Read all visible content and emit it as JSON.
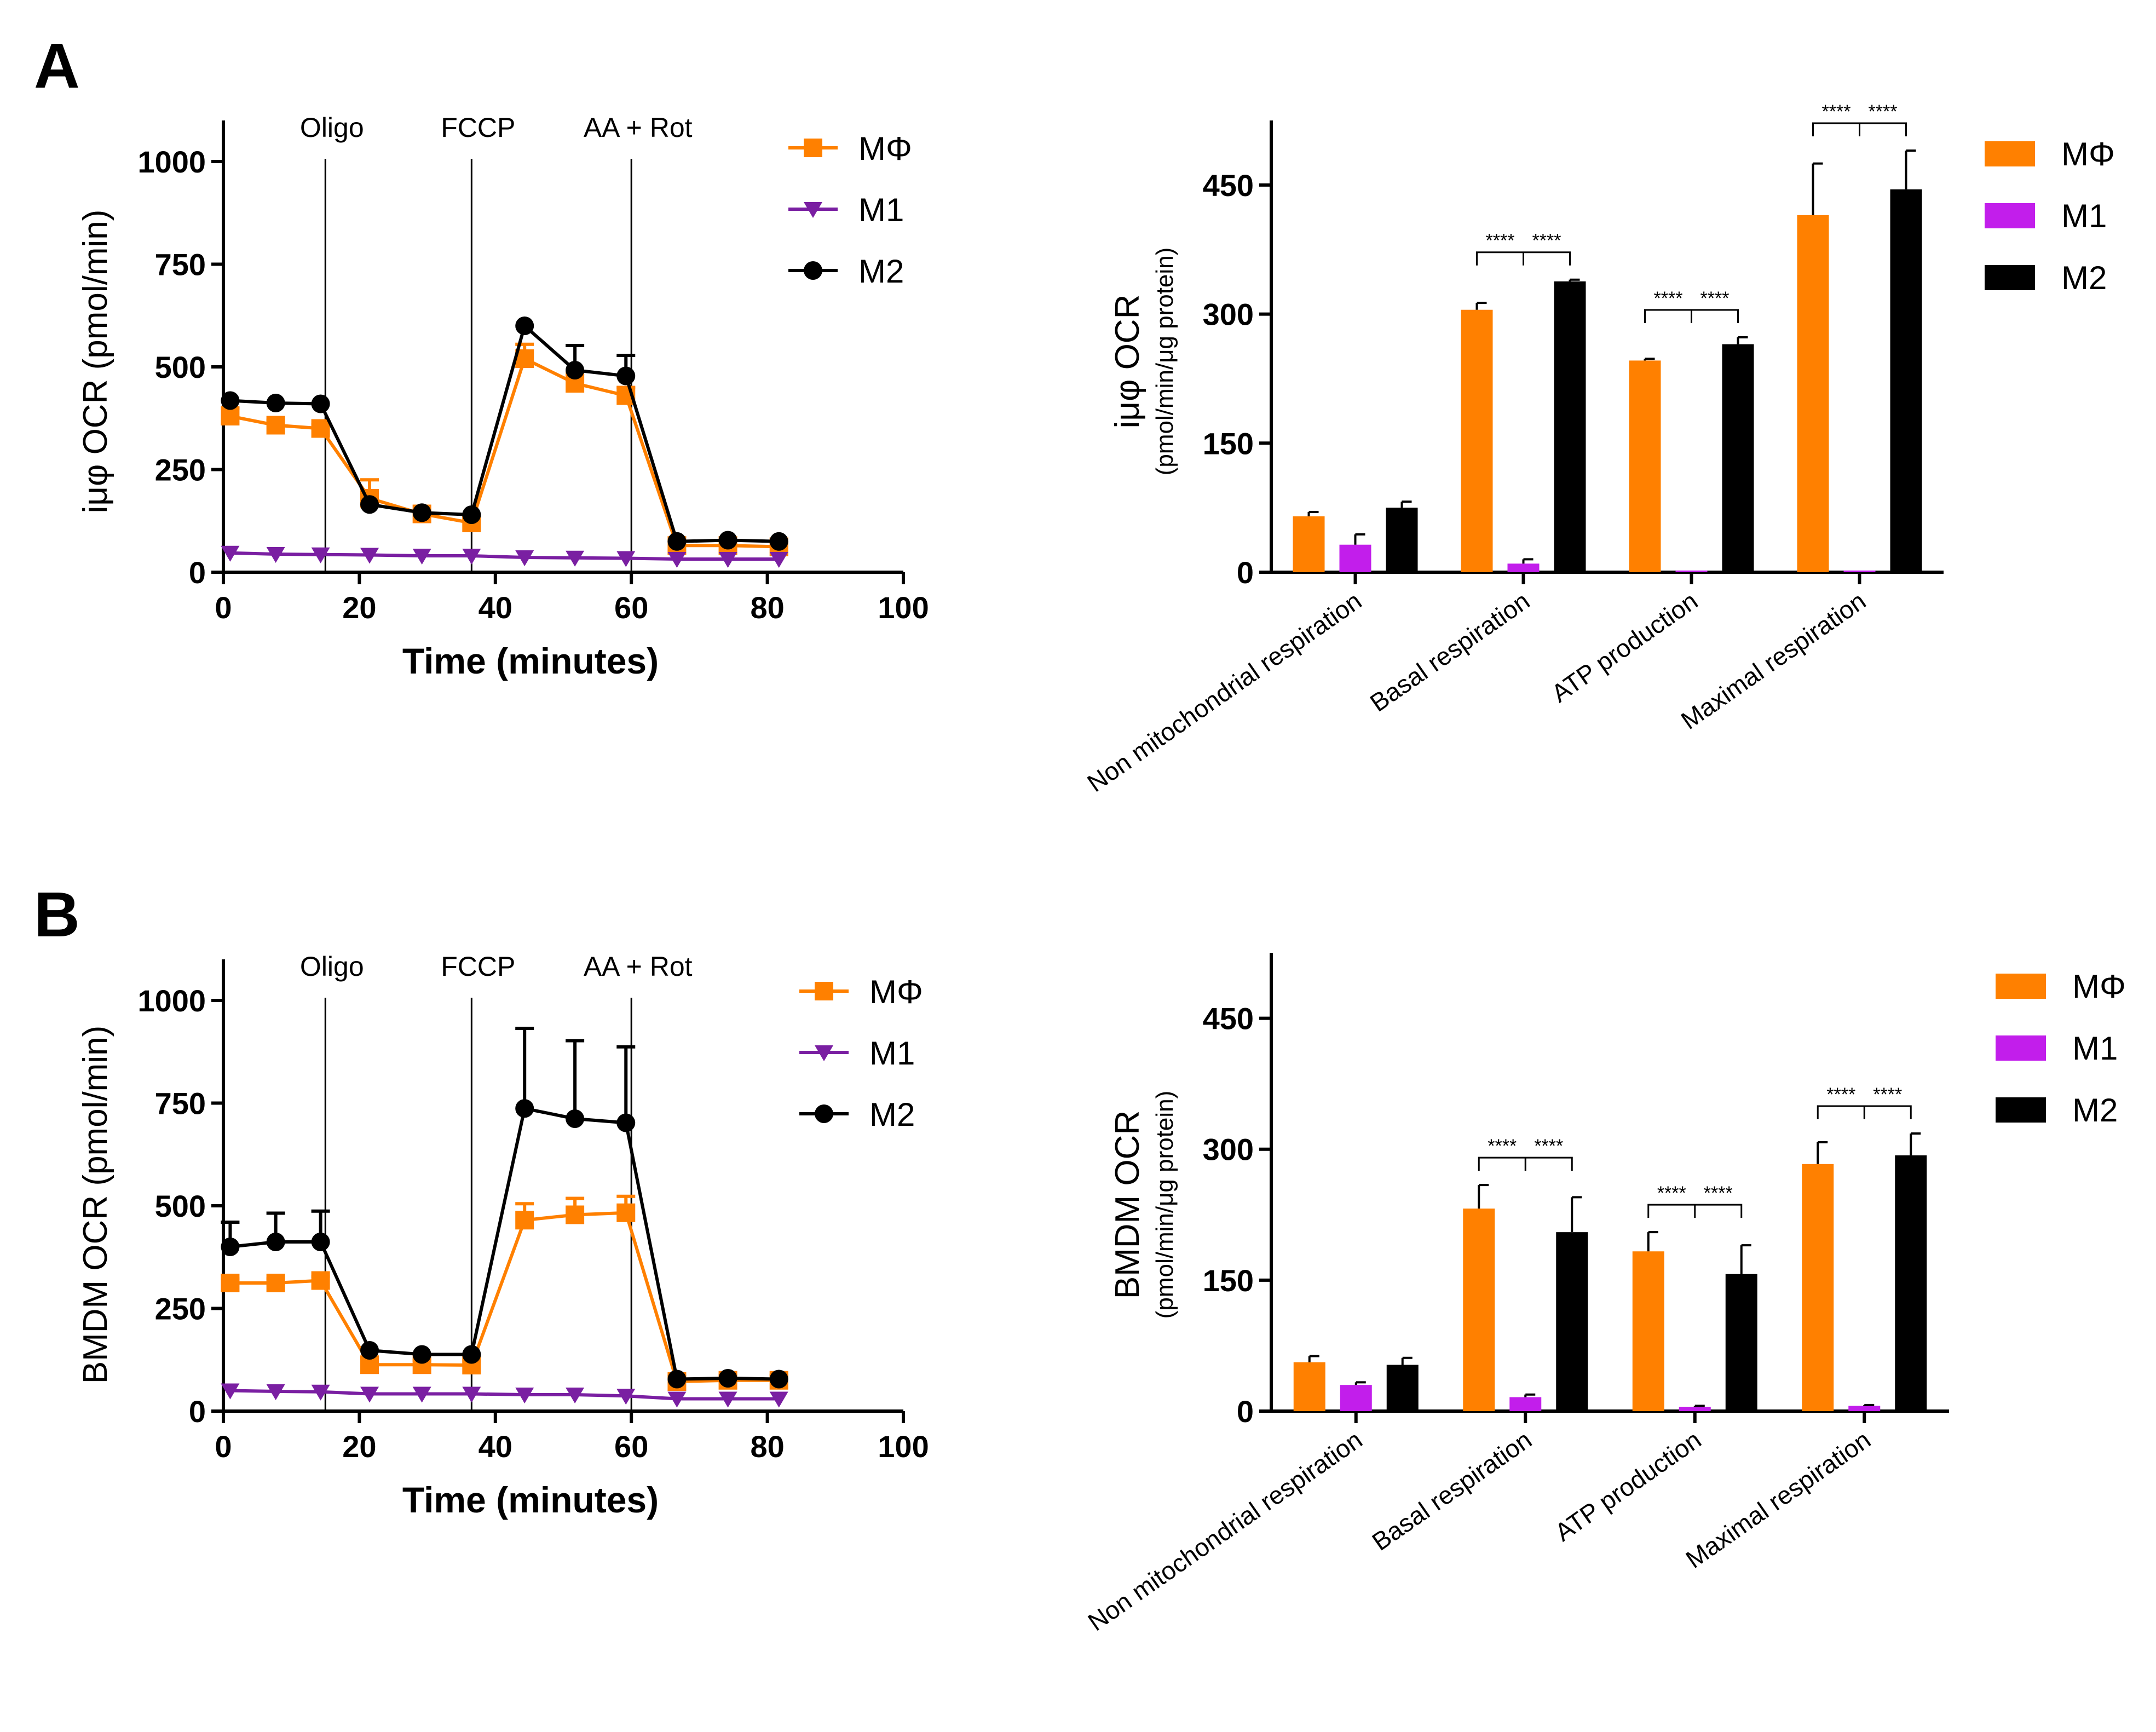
{
  "figure": {
    "panels": [
      {
        "letter": "A",
        "line_ylabel": "iμφ OCR (pmol/min)",
        "bar_ylabel_main": "iμφ OCR",
        "bar_ylabel_sub": "(pmol/min/μg protein)"
      },
      {
        "letter": "B",
        "line_ylabel": "BMDM OCR (pmol/min)",
        "bar_ylabel_main": "BMDM OCR",
        "bar_ylabel_sub": "(pmol/min/μg protein)"
      }
    ]
  },
  "chart_data": [
    {
      "id": "A-line",
      "type": "line",
      "panel": "A",
      "xlabel": "Time (minutes)",
      "ylabel": "iμφ OCR (pmol/min)",
      "xlim": [
        0,
        100
      ],
      "ylim": [
        0,
        1100
      ],
      "xticks": [
        0,
        20,
        40,
        60,
        80,
        100
      ],
      "yticks": [
        0,
        250,
        500,
        750,
        1000
      ],
      "injections": [
        {
          "label": "Oligo",
          "x": 15
        },
        {
          "label": "FCCP",
          "x": 36.5
        },
        {
          "label": "AA + Rot",
          "x": 60
        }
      ],
      "x": [
        1,
        7.7,
        14.3,
        21.5,
        29.2,
        36.5,
        44.3,
        51.7,
        59.2,
        66.7,
        74.2,
        81.7
      ],
      "legend": "right",
      "series": [
        {
          "name": "MΦ",
          "color": "#FF8000",
          "marker": "square",
          "values": [
            380,
            358,
            350,
            180,
            142,
            120,
            520,
            460,
            430,
            65,
            65,
            62
          ],
          "err": [
            20,
            12,
            10,
            45,
            8,
            12,
            35,
            25,
            20,
            12,
            10,
            10
          ]
        },
        {
          "name": "M1",
          "color": "#7A1FA2",
          "marker": "triangle-down",
          "values": [
            47,
            44,
            43,
            42,
            40,
            40,
            36,
            35,
            34,
            32,
            32,
            32
          ],
          "err": [
            0,
            0,
            0,
            0,
            0,
            0,
            0,
            0,
            0,
            0,
            0,
            0
          ]
        },
        {
          "name": "M2",
          "color": "#000000",
          "marker": "circle",
          "values": [
            418,
            412,
            410,
            165,
            145,
            140,
            600,
            492,
            478,
            75,
            78,
            75
          ],
          "err": [
            0,
            0,
            0,
            0,
            0,
            0,
            0,
            60,
            50,
            0,
            0,
            0
          ]
        }
      ]
    },
    {
      "id": "A-bar",
      "type": "bar",
      "panel": "A",
      "ylabel": "iμφ OCR (pmol/min/μg protein)",
      "ylim": [
        0,
        525
      ],
      "yticks": [
        0,
        150,
        300,
        450
      ],
      "categories": [
        "Non mitochondrial respiration",
        "Basal respiration",
        "ATP production",
        "Maximal respiration"
      ],
      "legend": "right",
      "series": [
        {
          "name": "MΦ",
          "color": "#FF8000",
          "values": [
            65,
            305,
            246,
            415
          ],
          "err": [
            5,
            8,
            2,
            60
          ]
        },
        {
          "name": "M1",
          "color": "#C21EEB",
          "values": [
            32,
            10,
            2,
            2
          ],
          "err": [
            12,
            5,
            0,
            0
          ]
        },
        {
          "name": "M2",
          "color": "#000000",
          "values": [
            75,
            338,
            265,
            445
          ],
          "err": [
            7,
            2,
            8,
            45
          ]
        }
      ],
      "significance": [
        {
          "category": 1,
          "label": "****"
        },
        {
          "category": 2,
          "label": "****"
        },
        {
          "category": 3,
          "label": "****"
        }
      ]
    },
    {
      "id": "B-line",
      "type": "line",
      "panel": "B",
      "xlabel": "Time (minutes)",
      "ylabel": "BMDM OCR (pmol/min)",
      "xlim": [
        0,
        100
      ],
      "ylim": [
        0,
        1100
      ],
      "xticks": [
        0,
        20,
        40,
        60,
        80,
        100
      ],
      "yticks": [
        0,
        250,
        500,
        750,
        1000
      ],
      "injections": [
        {
          "label": "Oligo",
          "x": 15
        },
        {
          "label": "FCCP",
          "x": 36.5
        },
        {
          "label": "AA + Rot",
          "x": 60
        }
      ],
      "x": [
        1,
        7.7,
        14.3,
        21.5,
        29.2,
        36.5,
        44.3,
        51.7,
        59.2,
        66.7,
        74.2,
        81.7
      ],
      "legend": "right",
      "series": [
        {
          "name": "MΦ",
          "color": "#FF8000",
          "marker": "square",
          "values": [
            312,
            312,
            318,
            113,
            113,
            112,
            465,
            478,
            483,
            72,
            75,
            75
          ],
          "err": [
            10,
            10,
            10,
            15,
            10,
            10,
            40,
            40,
            40,
            12,
            12,
            12
          ]
        },
        {
          "name": "M1",
          "color": "#7A1FA2",
          "marker": "triangle-down",
          "values": [
            50,
            48,
            47,
            42,
            42,
            42,
            40,
            40,
            37,
            30,
            30,
            30
          ],
          "err": [
            0,
            0,
            0,
            0,
            0,
            0,
            0,
            0,
            0,
            0,
            0,
            0
          ]
        },
        {
          "name": "M2",
          "color": "#000000",
          "marker": "circle",
          "values": [
            400,
            412,
            412,
            148,
            138,
            138,
            737,
            712,
            702,
            78,
            80,
            78
          ],
          "err": [
            60,
            70,
            75,
            0,
            0,
            0,
            195,
            190,
            185,
            0,
            0,
            0
          ]
        }
      ]
    },
    {
      "id": "B-bar",
      "type": "bar",
      "panel": "B",
      "ylabel": "BMDM OCR (pmol/min/μg protein)",
      "ylim": [
        0,
        525
      ],
      "yticks": [
        0,
        150,
        300,
        450
      ],
      "categories": [
        "Non mitochondrial respiration",
        "Basal respiration",
        "ATP production",
        "Maximal respiration"
      ],
      "legend": "right",
      "series": [
        {
          "name": "MΦ",
          "color": "#FF8000",
          "values": [
            56,
            232,
            183,
            283
          ],
          "err": [
            7,
            27,
            22,
            25
          ]
        },
        {
          "name": "M1",
          "color": "#C21EEB",
          "values": [
            30,
            16,
            5,
            6
          ],
          "err": [
            3,
            3,
            1,
            1
          ]
        },
        {
          "name": "M2",
          "color": "#000000",
          "values": [
            53,
            205,
            157,
            293
          ],
          "err": [
            8,
            40,
            33,
            25
          ]
        }
      ],
      "significance": [
        {
          "category": 1,
          "label": "****"
        },
        {
          "category": 2,
          "label": "****"
        },
        {
          "category": 3,
          "label": "****"
        }
      ]
    }
  ]
}
